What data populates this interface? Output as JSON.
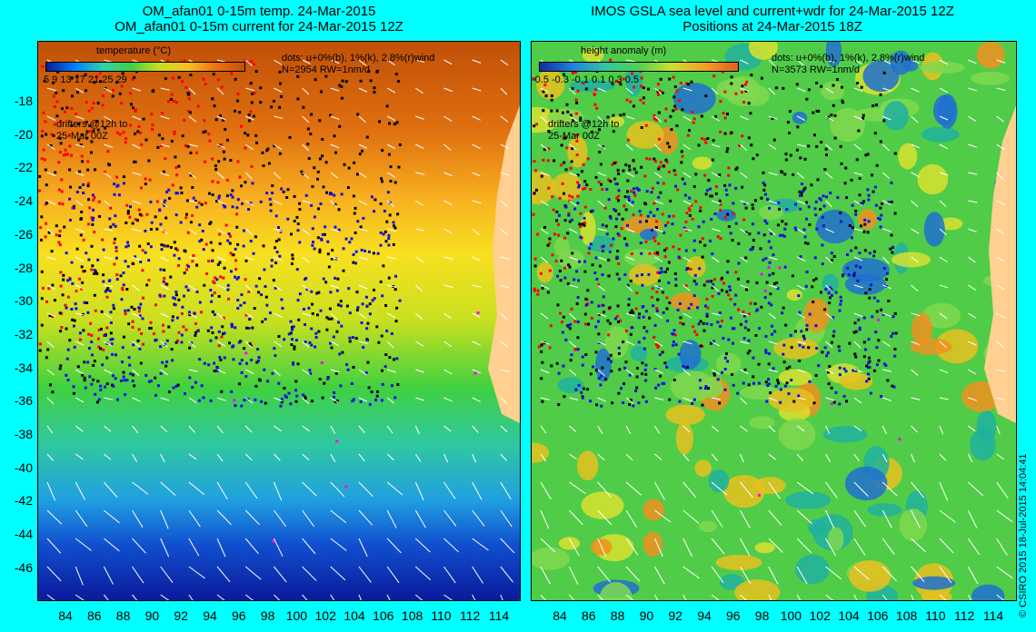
{
  "left": {
    "title_line1": "OM_afan01 0-15m temp. 24-Mar-2015",
    "title_line2": "OM_afan01 0-15m current for 24-Mar-2015 12Z",
    "colorbar_title": "temperature (°C)",
    "colorbar_ticks": "5   9   13   17   21   25   29",
    "dots_note": "dots: u+0%(b), 1%(k), 2.8%(r)wind",
    "count_note": "N=2954 RW=1nm/d",
    "drifter_note_1": "drifters @12h to",
    "drifter_note_2": "25-Mar 00Z",
    "colors": [
      "#0a1a9a",
      "#0080ff",
      "#30d0b0",
      "#40d040",
      "#c8e020",
      "#f8c020",
      "#f07010",
      "#c05008"
    ]
  },
  "right": {
    "title_line1": "IMOS GSLA sea level and current+wdr for 24-Mar-2015 12Z",
    "title_line2": "Positions at 24-Mar-2015 18Z",
    "colorbar_title": "height anomaly (m)",
    "colorbar_ticks": "-0.5  -0.3  -0.1   0.1   0.3   0.5",
    "dots_note": "dots: u+0%(b), 1%(k), 2.8%(r)wind",
    "count_note": "N=3573 RW=1nm/d",
    "drifter_note_1": "drifters @12h to",
    "drifter_note_2": "25-Mar 00Z",
    "colors": [
      "#30c040",
      "#60d050",
      "#d0e030",
      "#f0a020",
      "#20b0a0",
      "#1050d0"
    ]
  },
  "y_ticks": [
    "-18",
    "-20",
    "-22",
    "-24",
    "-26",
    "-28",
    "-30",
    "-32",
    "-34",
    "-36",
    "-38",
    "-40",
    "-42",
    "-44",
    "-46"
  ],
  "x_ticks": [
    "84",
    "86",
    "88",
    "90",
    "92",
    "94",
    "96",
    "98",
    "100",
    "102",
    "104",
    "106",
    "108",
    "110",
    "112",
    "114"
  ],
  "credit": "© CSIRO 2015   18-Jul-2015 14:04:41"
}
